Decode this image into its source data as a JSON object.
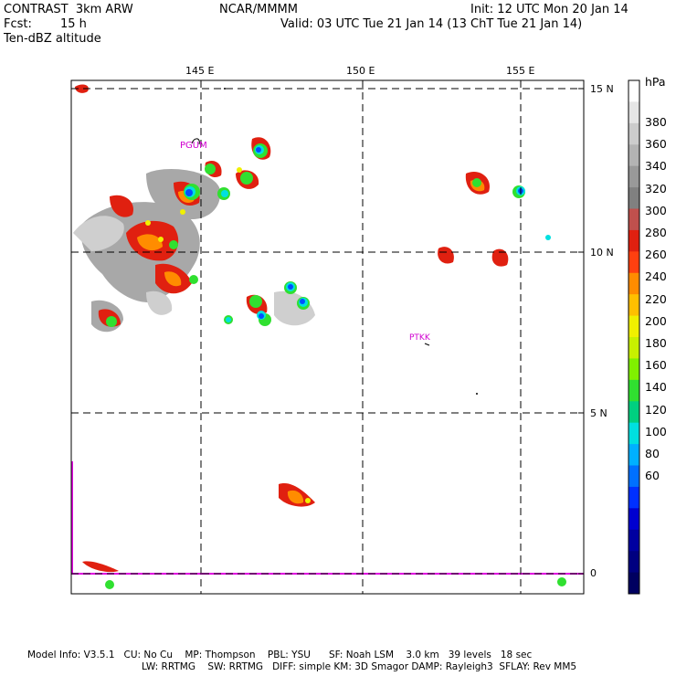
{
  "header": {
    "model": "CONTRAST  3km ARW",
    "org": "NCAR/MMMM",
    "init": "Init: 12 UTC Mon 20 Jan 14",
    "fcst_label": "Fcst:",
    "fcst_value": "15 h",
    "valid": "Valid: 03 UTC Tue 21 Jan 14 (13 ChT Tue 21 Jan 14)",
    "field": "Ten-dBZ altitude"
  },
  "map": {
    "lon_labels": [
      "145 E",
      "150 E",
      "155 E"
    ],
    "lat_labels": [
      "15 N",
      "10 N",
      "5 N",
      "0"
    ],
    "stations": [
      "PGUM",
      "PTKK"
    ]
  },
  "colorbar": {
    "unit": "hPa",
    "levels": [
      "380",
      "360",
      "340",
      "320",
      "300",
      "280",
      "260",
      "240",
      "220",
      "200",
      "180",
      "160",
      "140",
      "120",
      "100",
      "80",
      "60"
    ],
    "colors": [
      "#ffffff",
      "#e6e6e6",
      "#cccccc",
      "#b3b3b3",
      "#999999",
      "#808080",
      "#c0504d",
      "#e02010",
      "#ff4010",
      "#ff8c00",
      "#ffc000",
      "#f0f000",
      "#c8f000",
      "#80f000",
      "#30e030",
      "#00d080",
      "#00e0e0",
      "#00b0ff",
      "#0070ff",
      "#0030ff",
      "#0000d0",
      "#0000a0",
      "#000080",
      "#000060"
    ]
  },
  "footer": {
    "line1": "Model Info: V3.5.1   CU: No Cu    MP: Thompson    PBL: YSU      SF: Noah LSM    3.0 km   39 levels   18 sec",
    "line2": "LW: RRTMG    SW: RRTMG   DIFF: simple KM: 3D Smagor DAMP: Rayleigh3  SFLAY: Rev MM5"
  }
}
